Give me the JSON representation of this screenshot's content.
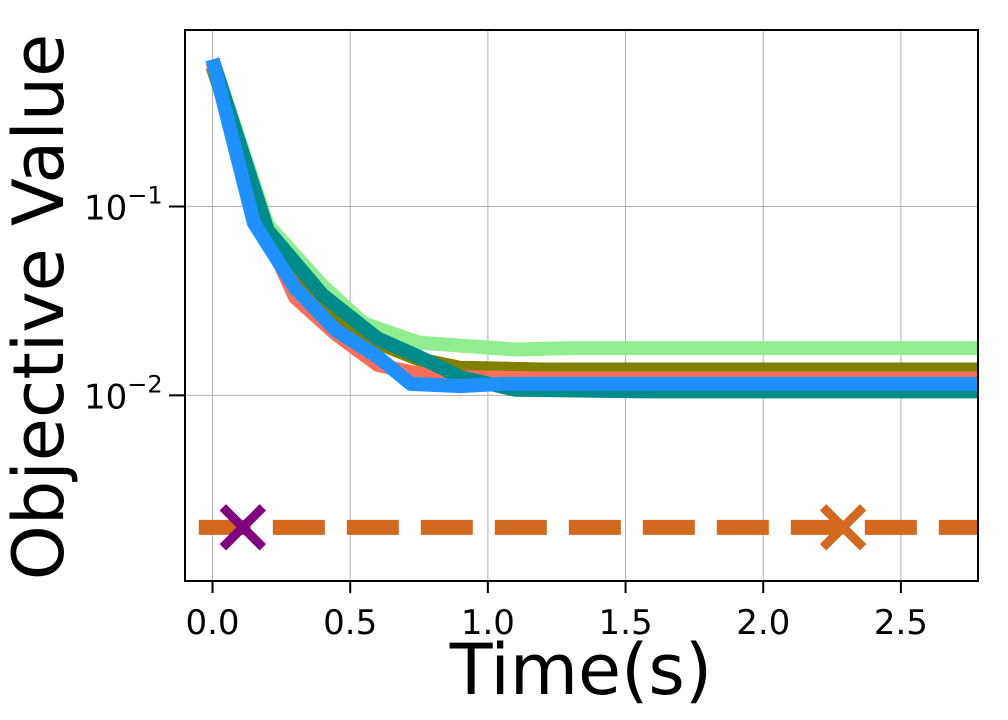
{
  "chart_data": {
    "type": "line",
    "xlabel": "Time(s)",
    "ylabel": "Objective Value",
    "xlim": [
      -0.1,
      2.78
    ],
    "ylim": [
      0.00104,
      0.86
    ],
    "yscale": "log",
    "grid": true,
    "xticks": [
      {
        "value": 0.0,
        "label": "0.0"
      },
      {
        "value": 0.5,
        "label": "0.5"
      },
      {
        "value": 1.0,
        "label": "1.0"
      },
      {
        "value": 1.5,
        "label": "1.5"
      },
      {
        "value": 2.0,
        "label": "2.0"
      },
      {
        "value": 2.5,
        "label": "2.5"
      }
    ],
    "yticks": [
      {
        "value": 0.1,
        "base": "10",
        "exp": "−1"
      },
      {
        "value": 0.01,
        "base": "10",
        "exp": "−2"
      }
    ],
    "series": [
      {
        "color": "#90ee90",
        "x": [
          0.0,
          0.2,
          0.4,
          0.55,
          0.75,
          1.1,
          1.3,
          2.78
        ],
        "y": [
          0.6,
          0.08,
          0.038,
          0.024,
          0.019,
          0.0175,
          0.0178,
          0.0178
        ]
      },
      {
        "color": "#808000",
        "x": [
          0.0,
          0.2,
          0.4,
          0.6,
          0.75,
          0.9,
          1.2,
          2.78
        ],
        "y": [
          0.55,
          0.07,
          0.03,
          0.019,
          0.0155,
          0.014,
          0.0137,
          0.0137
        ]
      },
      {
        "color": "#fa6e5a",
        "x": [
          0.0,
          0.18,
          0.3,
          0.45,
          0.6,
          0.75,
          0.9,
          1.2,
          2.78
        ],
        "y": [
          0.58,
          0.08,
          0.033,
          0.021,
          0.0145,
          0.013,
          0.0125,
          0.0123,
          0.0123
        ]
      },
      {
        "color": "#008b8b",
        "x": [
          0.0,
          0.2,
          0.4,
          0.6,
          0.75,
          0.9,
          1.1,
          1.6,
          2.78
        ],
        "y": [
          0.6,
          0.075,
          0.034,
          0.02,
          0.016,
          0.0125,
          0.0107,
          0.0105,
          0.0105
        ]
      },
      {
        "color": "#1e90ff",
        "x": [
          0.0,
          0.15,
          0.3,
          0.45,
          0.6,
          0.72,
          0.9,
          1.05,
          1.5,
          2.78
        ],
        "y": [
          0.6,
          0.082,
          0.037,
          0.022,
          0.016,
          0.0115,
          0.0112,
          0.0115,
          0.0115,
          0.0115
        ]
      },
      {
        "color": "#d2691e",
        "dashed": true,
        "x": [
          -0.05,
          2.78
        ],
        "y": [
          0.002,
          0.002
        ]
      }
    ],
    "markers": [
      {
        "color": "#800080",
        "shape": "x",
        "x": 0.11,
        "y": 0.002
      },
      {
        "color": "#d2691e",
        "shape": "x",
        "x": 2.29,
        "y": 0.002
      }
    ]
  }
}
